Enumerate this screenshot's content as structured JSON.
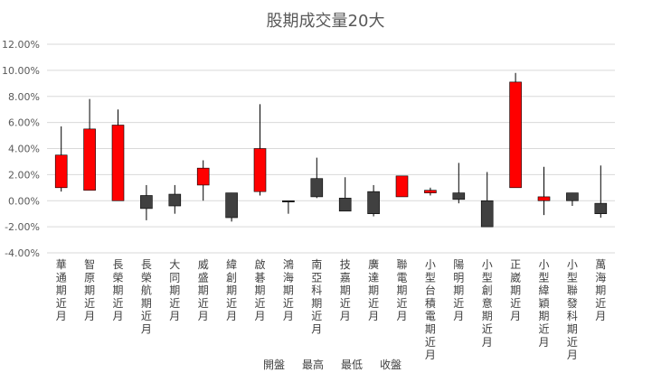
{
  "chart_data": {
    "type": "candlestick",
    "title": "股期成交量20大",
    "y_ticks": [
      "12.00%",
      "10.00%",
      "8.00%",
      "6.00%",
      "4.00%",
      "2.00%",
      "0.00%",
      "-2.00%",
      "-4.00%"
    ],
    "ylim": [
      -4,
      12
    ],
    "legend": [
      "開盤",
      "最高",
      "最低",
      "收盤"
    ],
    "up_color": "#ff0000",
    "down_color": "#404040",
    "categories": [
      "華通期近月",
      "智原期近月",
      "長榮期近月",
      "長榮航期近月",
      "大同期近月",
      "威盛期近月",
      "緯創期近月",
      "啟碁期近月",
      "鴻海期近月",
      "南亞科期近月",
      "技嘉期近月",
      "廣達期近月",
      "聯電期近月",
      "小型台積電期近月",
      "陽明期近月",
      "小型創意期近月",
      "正崴期近月",
      "小型緯穎期近月",
      "小型聯發科期近月",
      "萬海期近月"
    ],
    "series": [
      {
        "name": "華通期近月",
        "open": 1.0,
        "high": 5.7,
        "low": 0.7,
        "close": 3.5
      },
      {
        "name": "智原期近月",
        "open": 0.8,
        "high": 7.8,
        "low": 0.8,
        "close": 5.5
      },
      {
        "name": "長榮期近月",
        "open": 0.0,
        "high": 7.0,
        "low": 0.0,
        "close": 5.8
      },
      {
        "name": "長榮航期近月",
        "open": 0.4,
        "high": 1.2,
        "low": -1.5,
        "close": -0.6
      },
      {
        "name": "大同期近月",
        "open": 0.5,
        "high": 1.2,
        "low": -1.0,
        "close": -0.4
      },
      {
        "name": "威盛期近月",
        "open": 1.2,
        "high": 3.1,
        "low": 0.0,
        "close": 2.5
      },
      {
        "name": "緯創期近月",
        "open": 0.6,
        "high": 0.6,
        "low": -1.6,
        "close": -1.3
      },
      {
        "name": "啟碁期近月",
        "open": 0.7,
        "high": 7.4,
        "low": 0.4,
        "close": 4.0
      },
      {
        "name": "鴻海期近月",
        "open": 0.0,
        "high": 0.0,
        "low": -1.0,
        "close": -0.1
      },
      {
        "name": "南亞科期近月",
        "open": 1.7,
        "high": 3.3,
        "low": 0.2,
        "close": 0.3
      },
      {
        "name": "技嘉期近月",
        "open": 0.2,
        "high": 1.8,
        "low": -0.8,
        "close": -0.8
      },
      {
        "name": "廣達期近月",
        "open": 0.7,
        "high": 1.2,
        "low": -1.2,
        "close": -1.0
      },
      {
        "name": "聯電期近月",
        "open": 0.3,
        "high": 1.9,
        "low": 0.3,
        "close": 1.9
      },
      {
        "name": "小型台積電期近月",
        "open": 0.6,
        "high": 1.0,
        "low": 0.4,
        "close": 0.8
      },
      {
        "name": "陽明期近月",
        "open": 0.6,
        "high": 2.9,
        "low": -0.2,
        "close": 0.1
      },
      {
        "name": "小型創意期近月",
        "open": 0.0,
        "high": 2.2,
        "low": -2.0,
        "close": -2.0
      },
      {
        "name": "正崴期近月",
        "open": 1.0,
        "high": 9.8,
        "low": 1.0,
        "close": 9.1
      },
      {
        "name": "小型緯穎期近月",
        "open": 0.0,
        "high": 2.6,
        "low": -1.1,
        "close": 0.3
      },
      {
        "name": "小型聯發科期近月",
        "open": 0.6,
        "high": 0.6,
        "low": -0.4,
        "close": 0.0
      },
      {
        "name": "萬海期近月",
        "open": -0.2,
        "high": 2.7,
        "low": -1.3,
        "close": -1.0
      }
    ]
  }
}
